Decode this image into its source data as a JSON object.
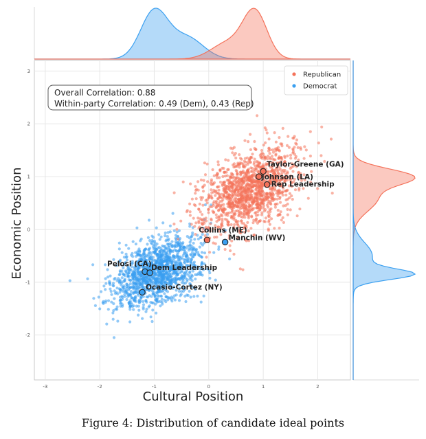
{
  "chart_data": {
    "type": "scatter",
    "xlabel": "Cultural Position",
    "ylabel": "Economic Position",
    "xlim": [
      -3.2,
      2.6
    ],
    "ylim": [
      -2.85,
      3.2
    ],
    "x_ticks": [
      -3,
      -2,
      -1,
      0,
      1,
      2
    ],
    "y_ticks": [
      -2,
      -1,
      0,
      1,
      2,
      3
    ],
    "grid": true,
    "legend_position": "top-right",
    "series": [
      {
        "name": "Republican",
        "color": "#f4725a",
        "center": [
          0.75,
          0.75
        ],
        "sd": [
          0.45,
          0.4
        ],
        "n_points": 1400
      },
      {
        "name": "Democrat",
        "color": "#3a9ff0",
        "center": [
          -0.95,
          -0.8
        ],
        "sd": [
          0.4,
          0.35
        ],
        "n_points": 1400
      }
    ],
    "marginal_x": [
      {
        "series": "Democrat",
        "peaks": [
          {
            "x": -1.0,
            "sd": 0.25,
            "w": 1.0
          },
          {
            "x": -0.4,
            "sd": 0.3,
            "w": 0.45
          }
        ]
      },
      {
        "series": "Republican",
        "peaks": [
          {
            "x": 0.85,
            "sd": 0.22,
            "w": 1.0
          },
          {
            "x": 0.35,
            "sd": 0.3,
            "w": 0.35
          }
        ]
      }
    ],
    "marginal_y": [
      {
        "series": "Republican",
        "peaks": [
          {
            "y": 1.0,
            "sd": 0.15,
            "w": 1.0
          },
          {
            "y": 0.6,
            "sd": 0.25,
            "w": 0.45
          }
        ]
      },
      {
        "series": "Democrat",
        "peaks": [
          {
            "y": -0.85,
            "sd": 0.1,
            "w": 1.0
          },
          {
            "y": -0.5,
            "sd": 0.25,
            "w": 0.35
          }
        ]
      }
    ],
    "highlighted": [
      {
        "label": "Taylor-Greene (GA)",
        "x": 1.0,
        "y": 1.1,
        "party": "Republican"
      },
      {
        "label": "Johnson (LA)",
        "x": 0.92,
        "y": 1.0,
        "party": "Republican"
      },
      {
        "label": "Rep Leadership",
        "x": 1.07,
        "y": 0.85,
        "party": "Republican"
      },
      {
        "label": "Collins (ME)",
        "x": -0.03,
        "y": -0.2,
        "party": "Republican"
      },
      {
        "label": "Manchin (WV)",
        "x": 0.3,
        "y": -0.24,
        "party": "Democrat"
      },
      {
        "label": "Pelosi (CA)",
        "x": -1.17,
        "y": -0.8,
        "party": "Democrat"
      },
      {
        "label": "Dem Leadership",
        "x": -1.08,
        "y": -0.82,
        "party": "Democrat"
      },
      {
        "label": "Ocasio-Cortez (NY)",
        "x": -1.22,
        "y": -1.19,
        "party": "Democrat"
      }
    ],
    "correlation_box": {
      "line1": "Overall Correlation: 0.88",
      "line2": "Within-party Correlation: 0.49 (Dem), 0.43 (Rep)"
    }
  },
  "caption": "Figure 4: Distribution of candidate ideal points"
}
